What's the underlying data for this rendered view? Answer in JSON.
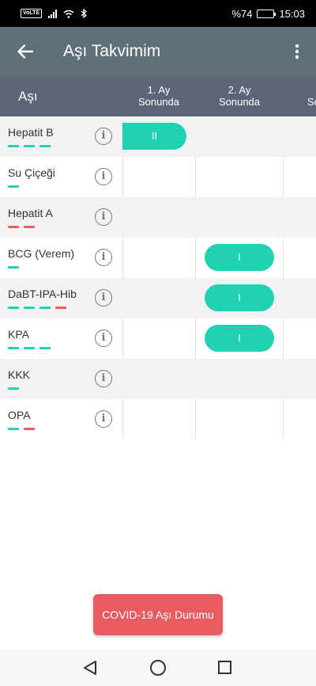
{
  "status_bar": {
    "volte": "VoLTE",
    "battery": "%74",
    "time": "15:03",
    "battery_level": 0.74
  },
  "app_bar": {
    "title": "Aşı Takvimim"
  },
  "table": {
    "vaccine_header": "Aşı",
    "columns": [
      "1. Ay\nSonunda",
      "2. Ay\nSonunda",
      "So"
    ],
    "rows": [
      {
        "name": "Hepatit B",
        "dashes": [
          "#20d2b2",
          "#20d2b2",
          "#20d2b2"
        ],
        "doses": [
          "II",
          "",
          ""
        ]
      },
      {
        "name": "Su Çiçeği",
        "dashes": [
          "#20d2b2"
        ],
        "doses": [
          "",
          "",
          ""
        ]
      },
      {
        "name": "Hepatit A",
        "dashes": [
          "#e85c61",
          "#e85c61"
        ],
        "doses": [
          "",
          "",
          ""
        ]
      },
      {
        "name": "BCG (Verem)",
        "dashes": [
          "#20d2b2"
        ],
        "doses": [
          "",
          "I",
          ""
        ]
      },
      {
        "name": "DaBT-IPA-Hib",
        "dashes": [
          "#20d2b2",
          "#20d2b2",
          "#20d2b2",
          "#e85c61"
        ],
        "doses": [
          "",
          "I",
          ""
        ]
      },
      {
        "name": "KPA",
        "dashes": [
          "#20d2b2",
          "#20d2b2",
          "#20d2b2"
        ],
        "doses": [
          "",
          "I",
          ""
        ]
      },
      {
        "name": "KKK",
        "dashes": [
          "#20d2b2"
        ],
        "doses": [
          "",
          "",
          ""
        ]
      },
      {
        "name": "OPA",
        "dashes": [
          "#20d2b2",
          "#e85c61"
        ],
        "doses": [
          "",
          "",
          ""
        ]
      }
    ]
  },
  "covid_button": {
    "label": "COVID-19 Aşı Durumu"
  },
  "colors": {
    "accent": "#20d2b2",
    "danger": "#e85c61",
    "app_bar": "#5e7079",
    "table_header": "#5d6475"
  }
}
